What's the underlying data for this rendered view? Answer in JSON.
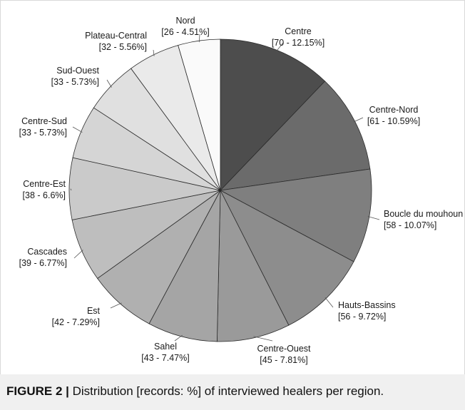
{
  "chart_data": {
    "type": "pie",
    "categories": [
      "Centre",
      "Centre-Nord",
      "Boucle du mouhoun",
      "Hauts-Bassins",
      "Centre-Ouest",
      "Sahel",
      "Est",
      "Cascades",
      "Centre-Est",
      "Centre-Sud",
      "Sud-Ouest",
      "Plateau-Central",
      "Nord"
    ],
    "values": [
      70,
      61,
      58,
      56,
      45,
      43,
      42,
      39,
      38,
      33,
      33,
      32,
      26
    ],
    "value_labels": [
      "[70 - 12.15%]",
      "[61 - 10.59%]",
      "[58 - 10.07%]",
      "[56 - 9.72%]",
      "[45 - 7.81%]",
      "[43 - 7.47%]",
      "[42 - 7.29%]",
      "[39 - 6.77%]",
      "[38 - 6.6%]",
      "[33 - 5.73%]",
      "[33 - 5.73%]",
      "[32 - 5.56%]",
      "[26 - 4.51%]"
    ],
    "colors": [
      "#4d4d4d",
      "#6b6b6b",
      "#7f7f7f",
      "#8d8d8d",
      "#9a9a9a",
      "#a5a5a5",
      "#b0b0b0",
      "#bebebe",
      "#cacaca",
      "#d5d5d5",
      "#e0e0e0",
      "#eaeaea",
      "#fafafa"
    ]
  },
  "caption": {
    "prefix": "FIGURE 2 |",
    "text": " Distribution [records: %] of interviewed healers per region."
  }
}
